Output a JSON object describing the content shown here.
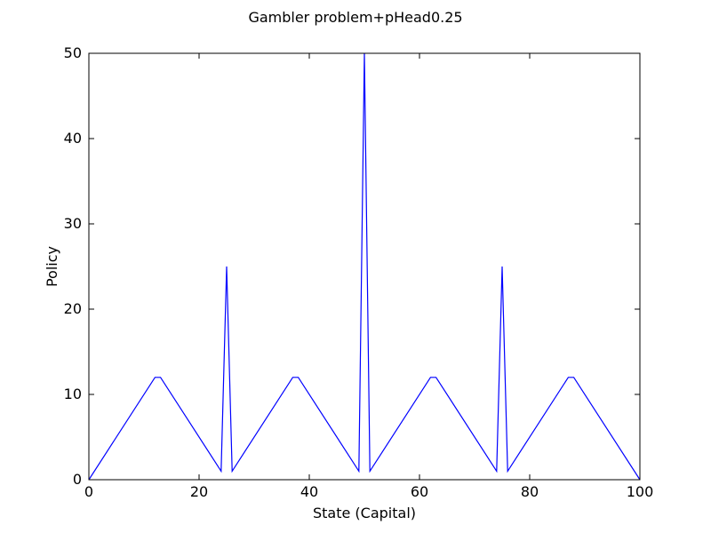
{
  "chart_data": {
    "type": "line",
    "title": "Gambler problem+pHead0.25",
    "xlabel": "State (Capital)",
    "ylabel": "Policy",
    "xlim": [
      0,
      100
    ],
    "ylim": [
      0,
      50
    ],
    "xticks": [
      0,
      20,
      40,
      60,
      80,
      100
    ],
    "yticks": [
      0,
      10,
      20,
      30,
      40,
      50
    ],
    "grid": false,
    "series": [
      {
        "color": "#0000ff",
        "x": [
          0,
          12,
          13,
          24,
          25,
          26,
          37,
          38,
          49,
          50,
          51,
          62,
          63,
          74,
          75,
          76,
          87,
          88,
          100
        ],
        "y": [
          0,
          12,
          12,
          1,
          25,
          1,
          12,
          12,
          1,
          50,
          1,
          12,
          12,
          1,
          25,
          1,
          12,
          12,
          0
        ]
      }
    ]
  }
}
